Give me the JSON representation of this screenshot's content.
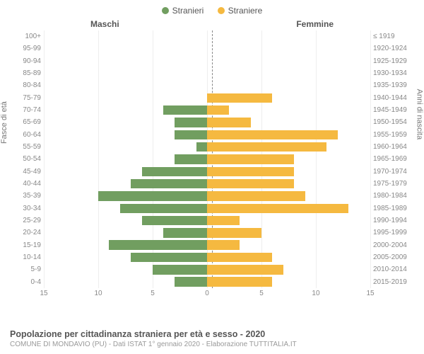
{
  "chart": {
    "type": "population-pyramid",
    "legend": {
      "male": "Stranieri",
      "female": "Straniere"
    },
    "column_titles": {
      "male": "Maschi",
      "female": "Femmine"
    },
    "y_axis_labels": {
      "left": "Fasce di età",
      "right": "Anni di nascita"
    },
    "colors": {
      "male": "#719e60",
      "female": "#f5b940",
      "grid": "#eeeeee",
      "center_line": "#888888",
      "text": "#555555",
      "text_light": "#888888",
      "background": "#ffffff"
    },
    "x_axis": {
      "min": -15,
      "max": 15,
      "ticks": [
        15,
        10,
        5,
        0,
        5,
        10,
        15
      ],
      "tick_positions_pct": [
        0,
        16.67,
        33.33,
        50,
        66.67,
        83.33,
        100
      ]
    },
    "max_value": 15,
    "rows": [
      {
        "age": "100+",
        "birth": "≤ 1919",
        "m": 0,
        "f": 0
      },
      {
        "age": "95-99",
        "birth": "1920-1924",
        "m": 0,
        "f": 0
      },
      {
        "age": "90-94",
        "birth": "1925-1929",
        "m": 0,
        "f": 0
      },
      {
        "age": "85-89",
        "birth": "1930-1934",
        "m": 0,
        "f": 0
      },
      {
        "age": "80-84",
        "birth": "1935-1939",
        "m": 0,
        "f": 0
      },
      {
        "age": "75-79",
        "birth": "1940-1944",
        "m": 0,
        "f": 6
      },
      {
        "age": "70-74",
        "birth": "1945-1949",
        "m": 4,
        "f": 2
      },
      {
        "age": "65-69",
        "birth": "1950-1954",
        "m": 3,
        "f": 4
      },
      {
        "age": "60-64",
        "birth": "1955-1959",
        "m": 3,
        "f": 12
      },
      {
        "age": "55-59",
        "birth": "1960-1964",
        "m": 1,
        "f": 11
      },
      {
        "age": "50-54",
        "birth": "1965-1969",
        "m": 3,
        "f": 8
      },
      {
        "age": "45-49",
        "birth": "1970-1974",
        "m": 6,
        "f": 8
      },
      {
        "age": "40-44",
        "birth": "1975-1979",
        "m": 7,
        "f": 8
      },
      {
        "age": "35-39",
        "birth": "1980-1984",
        "m": 10,
        "f": 9
      },
      {
        "age": "30-34",
        "birth": "1985-1989",
        "m": 8,
        "f": 13
      },
      {
        "age": "25-29",
        "birth": "1990-1994",
        "m": 6,
        "f": 3
      },
      {
        "age": "20-24",
        "birth": "1995-1999",
        "m": 4,
        "f": 5
      },
      {
        "age": "15-19",
        "birth": "2000-2004",
        "m": 9,
        "f": 3
      },
      {
        "age": "10-14",
        "birth": "2005-2009",
        "m": 7,
        "f": 6
      },
      {
        "age": "5-9",
        "birth": "2010-2014",
        "m": 5,
        "f": 7
      },
      {
        "age": "0-4",
        "birth": "2015-2019",
        "m": 3,
        "f": 6
      }
    ]
  },
  "footer": {
    "title": "Popolazione per cittadinanza straniera per età e sesso - 2020",
    "subtitle": "COMUNE DI MONDAVIO (PU) - Dati ISTAT 1° gennaio 2020 - Elaborazione TUTTITALIA.IT"
  }
}
